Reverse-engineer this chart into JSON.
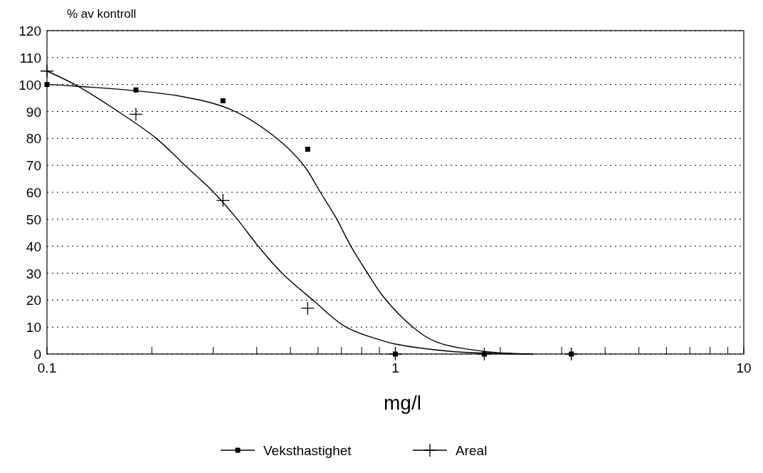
{
  "chart_data": {
    "type": "scatter",
    "ylabel": "% av kontroll",
    "xlabel": "mg/l",
    "log": "x",
    "xlim": [
      0.1,
      10
    ],
    "ylim": [
      0,
      120
    ],
    "xticks": [
      0.1,
      {
        "value": 0.2,
        "label": null
      },
      {
        "value": 0.3,
        "label": null
      },
      {
        "value": 0.4,
        "label": null
      },
      {
        "value": 0.5,
        "label": null
      },
      {
        "value": 0.6,
        "label": null
      },
      {
        "value": 0.7,
        "label": null
      },
      {
        "value": 0.8,
        "label": null
      },
      {
        "value": 0.9,
        "label": null
      },
      1,
      {
        "value": 2,
        "label": null
      },
      {
        "value": 3,
        "label": null
      },
      {
        "value": 4,
        "label": null
      },
      {
        "value": 5,
        "label": null
      },
      {
        "value": 6,
        "label": null
      },
      {
        "value": 7,
        "label": null
      },
      {
        "value": 8,
        "label": null
      },
      {
        "value": 9,
        "label": null
      },
      10
    ],
    "yticks": [
      0,
      10,
      20,
      30,
      40,
      50,
      60,
      70,
      80,
      90,
      100,
      110,
      120
    ],
    "grid": "y",
    "legend": "bottom",
    "series": [
      {
        "name": "Veksthastighet",
        "color": "#000000",
        "marker": "square",
        "x": [
          0.1,
          0.18,
          0.32,
          0.56,
          1,
          1.8,
          3.2
        ],
        "values": [
          100,
          98,
          94,
          76,
          0,
          0,
          0
        ]
      },
      {
        "name": "Areal",
        "color": "#000000",
        "marker": "cross",
        "x": [
          0.1,
          0.18,
          0.32,
          0.56,
          1,
          1.8,
          3.2
        ],
        "values": [
          105,
          89,
          57,
          17,
          0,
          0,
          0
        ]
      },
      {
        "type": "line",
        "color": "#000000",
        "line_style": "solid",
        "marker": "none",
        "x": [
          0.1,
          0.121,
          0.238,
          0.34,
          0.458,
          0.545,
          0.608,
          0.678,
          0.745,
          0.832,
          0.927,
          1.12,
          1.31,
          1.79,
          2.49
        ],
        "values": [
          100,
          99.4,
          95.8,
          90.5,
          79.9,
          70.1,
          60.2,
          50.2,
          40,
          30,
          21,
          10.1,
          4.5,
          1,
          0
        ]
      },
      {
        "type": "line",
        "color": "#000000",
        "line_style": "solid",
        "marker": "none",
        "x": [
          0.1,
          0.121,
          0.16,
          0.206,
          0.249,
          0.3,
          0.351,
          0.404,
          0.473,
          0.58,
          0.722,
          0.927,
          1,
          1.44,
          1.97,
          2.49
        ],
        "values": [
          105,
          99.8,
          90,
          80,
          70,
          60.2,
          50.2,
          40,
          30,
          20,
          10,
          4.8,
          3.7,
          1,
          0.2,
          0
        ]
      }
    ]
  }
}
